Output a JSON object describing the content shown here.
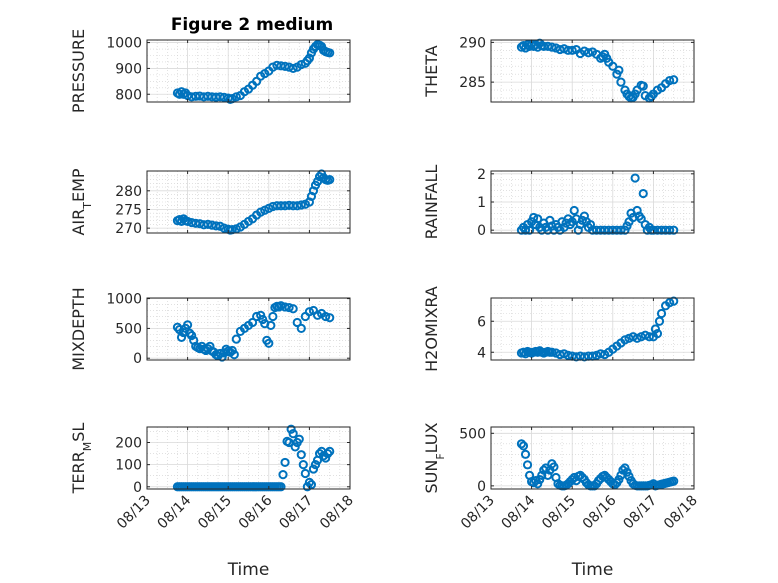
{
  "figure_title": "Figure 2 medium",
  "colors": {
    "marker": "#0072BD",
    "axis": "#262626"
  },
  "chart_data": [
    {
      "type": "scatter",
      "id": "pressure",
      "ylabel": "PRESSURE",
      "ylim": [
        770,
        1010
      ],
      "yticks": [
        800,
        900,
        1000
      ],
      "yminor": [
        825,
        850,
        875,
        925,
        950,
        975
      ],
      "xlim": [
        13,
        18
      ],
      "xticks": [
        "08/13",
        "08/14",
        "08/15",
        "08/16",
        "08/17",
        "08/18"
      ],
      "grid": true,
      "show_xticklabels": false,
      "x": [
        13.75,
        13.8,
        13.85,
        13.9,
        13.95,
        14.0,
        14.1,
        14.2,
        14.3,
        14.4,
        14.5,
        14.6,
        14.7,
        14.8,
        14.9,
        15.0,
        15.05,
        15.1,
        15.2,
        15.3,
        15.4,
        15.5,
        15.6,
        15.7,
        15.8,
        15.9,
        16.0,
        16.1,
        16.2,
        16.3,
        16.4,
        16.5,
        16.6,
        16.7,
        16.8,
        16.9,
        16.95,
        17.0,
        17.05,
        17.1,
        17.15,
        17.2,
        17.25,
        17.3,
        17.35,
        17.4,
        17.45,
        17.5
      ],
      "y": [
        805,
        800,
        810,
        800,
        805,
        795,
        790,
        792,
        793,
        790,
        792,
        790,
        789,
        790,
        788,
        785,
        780,
        783,
        790,
        795,
        810,
        820,
        835,
        850,
        870,
        880,
        890,
        905,
        912,
        910,
        908,
        905,
        900,
        905,
        915,
        920,
        930,
        940,
        960,
        975,
        985,
        992,
        990,
        985,
        970,
        965,
        962,
        960
      ]
    },
    {
      "type": "scatter",
      "id": "theta",
      "ylabel": "THETA",
      "ylim": [
        282.5,
        290.3
      ],
      "yticks": [
        285,
        290
      ],
      "yminor": [
        283,
        284,
        286,
        287,
        288,
        289
      ],
      "xlim": [
        13,
        18
      ],
      "xticks": [
        "08/13",
        "08/14",
        "08/15",
        "08/16",
        "08/17",
        "08/18"
      ],
      "grid": true,
      "show_xticklabels": false,
      "x": [
        13.75,
        13.8,
        13.85,
        13.9,
        13.95,
        14.0,
        14.05,
        14.1,
        14.15,
        14.2,
        14.25,
        14.3,
        14.4,
        14.5,
        14.6,
        14.7,
        14.8,
        14.9,
        15.0,
        15.1,
        15.2,
        15.3,
        15.4,
        15.5,
        15.6,
        15.7,
        15.75,
        15.8,
        15.85,
        15.9,
        16.0,
        16.1,
        16.15,
        16.2,
        16.3,
        16.35,
        16.4,
        16.45,
        16.5,
        16.55,
        16.6,
        16.7,
        16.75,
        16.8,
        16.9,
        16.95,
        17.0,
        17.1,
        17.2,
        17.3,
        17.4,
        17.5
      ],
      "y": [
        289.4,
        289.6,
        289.3,
        289.7,
        289.5,
        289.8,
        289.5,
        289.7,
        289.4,
        289.9,
        289.6,
        289.5,
        289.5,
        289.4,
        289.3,
        289.1,
        289.2,
        289.0,
        289.0,
        289.1,
        288.6,
        288.9,
        288.7,
        288.8,
        288.5,
        288.0,
        288.2,
        288.5,
        288.0,
        287.5,
        287.0,
        286.0,
        286.5,
        285.0,
        284.0,
        283.5,
        283.2,
        283.0,
        283.1,
        283.5,
        284.0,
        284.6,
        284.5,
        283.3,
        283.0,
        283.2,
        283.5,
        284.0,
        284.3,
        284.8,
        285.2,
        285.3
      ]
    },
    {
      "type": "scatter",
      "id": "air_temp",
      "ylabel": "AIR_TEMP",
      "ylim": [
        268.7,
        285.3
      ],
      "yticks": [
        270,
        275,
        280
      ],
      "yminor": [
        271,
        272,
        273,
        274,
        276,
        277,
        278,
        279,
        281,
        282,
        283,
        284
      ],
      "xlim": [
        13,
        18
      ],
      "xticks": [
        "08/13",
        "08/14",
        "08/15",
        "08/16",
        "08/17",
        "08/18"
      ],
      "grid": true,
      "show_xticklabels": false,
      "x": [
        13.75,
        13.8,
        13.85,
        13.9,
        13.95,
        14.0,
        14.1,
        14.2,
        14.3,
        14.4,
        14.5,
        14.6,
        14.7,
        14.8,
        14.9,
        15.0,
        15.05,
        15.1,
        15.2,
        15.3,
        15.4,
        15.5,
        15.6,
        15.7,
        15.8,
        15.9,
        16.0,
        16.1,
        16.2,
        16.3,
        16.4,
        16.5,
        16.6,
        16.7,
        16.8,
        16.9,
        17.0,
        17.05,
        17.1,
        17.15,
        17.2,
        17.25,
        17.3,
        17.35,
        17.4,
        17.45,
        17.5
      ],
      "y": [
        272.0,
        272.3,
        271.8,
        272.5,
        272.0,
        271.8,
        271.5,
        271.3,
        271.2,
        270.9,
        271.0,
        270.8,
        270.6,
        270.5,
        270.0,
        269.7,
        269.5,
        269.6,
        269.8,
        270.3,
        271.0,
        271.8,
        272.5,
        273.5,
        274.3,
        274.8,
        275.3,
        275.8,
        276.0,
        276.0,
        276.0,
        276.1,
        276.0,
        276.0,
        276.2,
        276.4,
        277.0,
        278.5,
        280.0,
        281.5,
        282.5,
        283.8,
        284.5,
        283.5,
        283.0,
        282.8,
        283.0
      ]
    },
    {
      "type": "scatter",
      "id": "rainfall",
      "ylabel": "RAINFALL",
      "ylim": [
        -0.1,
        2.1
      ],
      "yticks": [
        0,
        1,
        2
      ],
      "yminor": [
        0.2,
        0.4,
        0.6,
        0.8,
        1.2,
        1.4,
        1.6,
        1.8
      ],
      "xlim": [
        13,
        18
      ],
      "xticks": [
        "08/13",
        "08/14",
        "08/15",
        "08/16",
        "08/17",
        "08/18"
      ],
      "grid": true,
      "show_xticklabels": false,
      "x": [
        13.75,
        13.8,
        13.85,
        13.9,
        13.95,
        14.0,
        14.05,
        14.1,
        14.15,
        14.2,
        14.25,
        14.3,
        14.35,
        14.4,
        14.45,
        14.5,
        14.55,
        14.6,
        14.65,
        14.7,
        14.75,
        14.8,
        14.85,
        14.9,
        14.95,
        15.0,
        15.05,
        15.1,
        15.15,
        15.2,
        15.25,
        15.3,
        15.35,
        15.4,
        15.45,
        15.5,
        15.6,
        15.7,
        15.8,
        15.9,
        16.0,
        16.1,
        16.2,
        16.3,
        16.35,
        16.4,
        16.45,
        16.5,
        16.55,
        16.6,
        16.65,
        16.7,
        16.75,
        16.8,
        16.85,
        16.9,
        16.95,
        17.0,
        17.1,
        17.2,
        17.3,
        17.4,
        17.5
      ],
      "y": [
        0,
        0.1,
        0,
        0.2,
        0,
        0.3,
        0.45,
        0.2,
        0.4,
        0.1,
        0,
        0.25,
        0.1,
        0,
        0.35,
        0.15,
        0,
        0.2,
        0.1,
        0,
        0.3,
        0.1,
        0.25,
        0.4,
        0.2,
        0.3,
        0.7,
        0.4,
        0,
        0.2,
        0.35,
        0.5,
        0.3,
        0.1,
        0.2,
        0,
        0,
        0,
        0,
        0,
        0,
        0,
        0,
        0,
        0.15,
        0.3,
        0.6,
        0.45,
        1.85,
        0.7,
        0.5,
        0.4,
        1.3,
        0.2,
        0,
        0.1,
        0,
        0,
        0,
        0,
        0,
        0,
        0
      ]
    },
    {
      "type": "scatter",
      "id": "mixdepth",
      "ylabel": "MIXDEPTH",
      "ylim": [
        -30,
        1010
      ],
      "yticks": [
        0,
        500,
        1000
      ],
      "yminor": [
        100,
        200,
        300,
        400,
        600,
        700,
        800,
        900
      ],
      "xlim": [
        13,
        18
      ],
      "xticks": [
        "08/13",
        "08/14",
        "08/15",
        "08/16",
        "08/17",
        "08/18"
      ],
      "grid": true,
      "show_xticklabels": false,
      "x": [
        13.75,
        13.8,
        13.85,
        13.9,
        13.95,
        14.0,
        14.05,
        14.1,
        14.15,
        14.2,
        14.25,
        14.3,
        14.35,
        14.4,
        14.45,
        14.5,
        14.55,
        14.6,
        14.65,
        14.7,
        14.75,
        14.8,
        14.85,
        14.9,
        14.95,
        15.0,
        15.05,
        15.1,
        15.15,
        15.2,
        15.3,
        15.4,
        15.5,
        15.6,
        15.7,
        15.8,
        15.85,
        15.9,
        15.95,
        16.0,
        16.05,
        16.1,
        16.15,
        16.2,
        16.25,
        16.3,
        16.4,
        16.5,
        16.6,
        16.7,
        16.8,
        16.9,
        17.0,
        17.1,
        17.2,
        17.3,
        17.4,
        17.5
      ],
      "y": [
        520,
        480,
        350,
        430,
        500,
        560,
        420,
        380,
        300,
        200,
        180,
        160,
        200,
        150,
        130,
        160,
        200,
        120,
        100,
        60,
        40,
        80,
        20,
        90,
        150,
        120,
        100,
        130,
        60,
        320,
        450,
        500,
        550,
        600,
        700,
        720,
        650,
        580,
        300,
        250,
        550,
        700,
        850,
        870,
        860,
        880,
        860,
        850,
        830,
        600,
        500,
        700,
        780,
        800,
        720,
        750,
        700,
        680
      ]
    },
    {
      "type": "scatter",
      "id": "h2omixra",
      "ylabel": "H2OMIXRA",
      "ylim": [
        3.5,
        7.5
      ],
      "yticks": [
        4,
        6
      ],
      "yminor": [
        4.5,
        5,
        5.5,
        6.5,
        7
      ],
      "xlim": [
        13,
        18
      ],
      "xticks": [
        "08/13",
        "08/14",
        "08/15",
        "08/16",
        "08/17",
        "08/18"
      ],
      "grid": true,
      "show_xticklabels": false,
      "x": [
        13.75,
        13.8,
        13.85,
        13.9,
        13.95,
        14.0,
        14.05,
        14.1,
        14.15,
        14.2,
        14.25,
        14.3,
        14.35,
        14.4,
        14.45,
        14.5,
        14.6,
        14.7,
        14.8,
        14.9,
        15.0,
        15.1,
        15.2,
        15.3,
        15.4,
        15.5,
        15.6,
        15.7,
        15.8,
        15.9,
        16.0,
        16.1,
        16.2,
        16.3,
        16.4,
        16.5,
        16.6,
        16.7,
        16.8,
        16.9,
        17.0,
        17.05,
        17.1,
        17.15,
        17.2,
        17.3,
        17.4,
        17.5
      ],
      "y": [
        3.95,
        4.0,
        3.9,
        4.05,
        4.0,
        3.95,
        4.0,
        4.05,
        4.0,
        4.1,
        4.0,
        3.95,
        4.0,
        4.05,
        4.0,
        4.0,
        3.95,
        3.85,
        3.9,
        3.8,
        3.75,
        3.7,
        3.75,
        3.7,
        3.75,
        3.75,
        3.8,
        3.9,
        3.85,
        4.0,
        4.2,
        4.4,
        4.6,
        4.8,
        4.9,
        5.0,
        4.9,
        5.0,
        5.1,
        5.0,
        5.0,
        5.5,
        5.2,
        6.0,
        6.5,
        7.0,
        7.2,
        7.3
      ]
    },
    {
      "type": "scatter",
      "id": "terr_msl",
      "ylabel": "TERR_MSL",
      "ylim": [
        -10,
        270
      ],
      "yticks": [
        0,
        100,
        200
      ],
      "yminor": [
        50,
        150,
        250
      ],
      "xlim": [
        13,
        18
      ],
      "xticks": [
        "08/13",
        "08/14",
        "08/15",
        "08/16",
        "08/17",
        "08/18"
      ],
      "grid": true,
      "show_xticklabels": true,
      "x": [
        13.75,
        13.8,
        13.85,
        13.9,
        13.95,
        14.0,
        14.05,
        14.1,
        14.15,
        14.2,
        14.25,
        14.3,
        14.35,
        14.4,
        14.45,
        14.5,
        14.55,
        14.6,
        14.65,
        14.7,
        14.75,
        14.8,
        14.85,
        14.9,
        14.95,
        15.0,
        15.05,
        15.1,
        15.15,
        15.2,
        15.25,
        15.3,
        15.35,
        15.4,
        15.45,
        15.5,
        15.55,
        15.6,
        15.65,
        15.7,
        15.75,
        15.8,
        15.85,
        15.9,
        15.95,
        16.0,
        16.05,
        16.1,
        16.15,
        16.2,
        16.25,
        16.3,
        16.35,
        16.4,
        16.45,
        16.5,
        16.55,
        16.6,
        16.65,
        16.7,
        16.75,
        16.8,
        16.85,
        16.9,
        16.95,
        17.0,
        17.05,
        17.1,
        17.15,
        17.2,
        17.25,
        17.3,
        17.35,
        17.4,
        17.45,
        17.5
      ],
      "y": [
        0,
        0,
        0,
        0,
        0,
        0,
        0,
        0,
        0,
        0,
        0,
        0,
        0,
        0,
        0,
        0,
        0,
        0,
        0,
        0,
        0,
        0,
        0,
        0,
        0,
        0,
        0,
        0,
        0,
        0,
        0,
        0,
        0,
        0,
        0,
        0,
        0,
        0,
        0,
        0,
        0,
        0,
        0,
        0,
        0,
        0,
        0,
        0,
        0,
        0,
        0,
        0,
        55,
        110,
        205,
        200,
        260,
        240,
        180,
        200,
        215,
        145,
        100,
        60,
        0,
        20,
        10,
        80,
        100,
        120,
        150,
        160,
        140,
        130,
        150,
        160
      ]
    },
    {
      "type": "scatter",
      "id": "sun_flux",
      "ylabel": "SUN_FLUX",
      "ylim": [
        -30,
        560
      ],
      "yticks": [
        0,
        500
      ],
      "yminor": [
        100,
        200,
        300,
        400
      ],
      "xlim": [
        13,
        18
      ],
      "xticks": [
        "08/13",
        "08/14",
        "08/15",
        "08/16",
        "08/17",
        "08/18"
      ],
      "grid": true,
      "show_xticklabels": true,
      "x": [
        13.75,
        13.8,
        13.85,
        13.9,
        13.95,
        14.0,
        14.05,
        14.1,
        14.15,
        14.2,
        14.25,
        14.3,
        14.35,
        14.4,
        14.45,
        14.5,
        14.55,
        14.6,
        14.65,
        14.7,
        14.75,
        14.8,
        14.85,
        14.9,
        14.95,
        15.0,
        15.05,
        15.1,
        15.15,
        15.2,
        15.25,
        15.3,
        15.35,
        15.4,
        15.45,
        15.5,
        15.55,
        15.6,
        15.65,
        15.7,
        15.75,
        15.8,
        15.85,
        15.9,
        15.95,
        16.0,
        16.05,
        16.1,
        16.15,
        16.2,
        16.25,
        16.3,
        16.35,
        16.4,
        16.45,
        16.5,
        16.55,
        16.6,
        16.65,
        16.7,
        16.75,
        16.8,
        16.85,
        16.9,
        16.95,
        17.0,
        17.05,
        17.1,
        17.15,
        17.2,
        17.25,
        17.3,
        17.35,
        17.4,
        17.45,
        17.5
      ],
      "y": [
        400,
        380,
        300,
        200,
        100,
        40,
        30,
        50,
        20,
        60,
        100,
        150,
        170,
        100,
        150,
        210,
        180,
        80,
        20,
        5,
        0,
        0,
        5,
        20,
        40,
        60,
        80,
        50,
        90,
        100,
        80,
        60,
        30,
        10,
        0,
        0,
        0,
        20,
        50,
        70,
        90,
        100,
        80,
        60,
        40,
        20,
        10,
        30,
        60,
        100,
        150,
        170,
        130,
        90,
        50,
        20,
        5,
        0,
        0,
        0,
        0,
        0,
        0,
        5,
        10,
        20,
        0,
        5,
        10,
        15,
        20,
        25,
        30,
        35,
        40,
        45
      ]
    }
  ]
}
